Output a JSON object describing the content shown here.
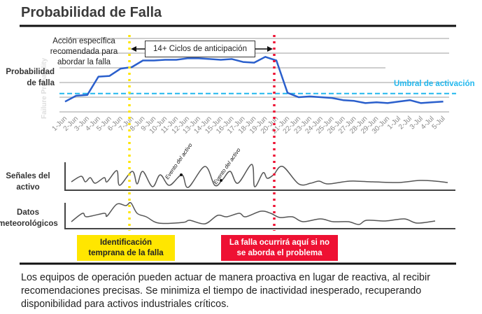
{
  "title": "Probabilidad de Falla",
  "left_labels": {
    "probability_line1": "Probabilidad",
    "probability_line2": "de falla",
    "signals_line1": "Señales del",
    "signals_line2": "activo",
    "weather_line1": "Datos",
    "weather_line2": "meteorológicos"
  },
  "faint_axis_label": "Failure Probability",
  "action_note": {
    "line1": "Acción específica",
    "line2": "recomendada para",
    "line3": "abordar la falla"
  },
  "cycles_label": "14+ Ciclos de anticipación",
  "threshold_label": "Umbral de activación",
  "event_label": "Evento del activo",
  "boxes": {
    "early_line1": "Identificación",
    "early_line2": "temprana de la falla",
    "failure_line1": "La falla ocurrirá aquí si no",
    "failure_line2": "se aborda el problema"
  },
  "paragraph": "Los equipos de operación pueden actuar de manera proactiva en lugar de reactiva, al recibir recomendaciones precisas. Se minimiza el tiempo de inactividad inesperado, recuperando disponibilidad para activos industriales críticos.",
  "colors": {
    "line": "#2a5fcc",
    "threshold": "#22b8ee",
    "early": "#ffe600",
    "failure": "#ee1133"
  },
  "chart_data": {
    "type": "line",
    "title": "Probabilidad de Falla",
    "ylabel": "Probabilidad de falla",
    "ylim": [
      0,
      100
    ],
    "threshold": 25,
    "categories": [
      "1-Jun",
      "2-Jun",
      "3-Jun",
      "4-Jun",
      "5-Jun",
      "6-Jun",
      "7-Jun",
      "8-Jun",
      "9-Jun",
      "10-Jun",
      "11-Jun",
      "12-Jun",
      "13-Jun",
      "14-Jun",
      "15-Jun",
      "16-Jun",
      "17-Jun",
      "18-Jun",
      "19-Jun",
      "20-Jun",
      "21-Jun",
      "22-Jun",
      "23-Jun",
      "24-Jun",
      "25-Jun",
      "26-Jun",
      "27-Jun",
      "28-Jun",
      "29-Jun",
      "30-Jun",
      "1-Jul",
      "2-Jul",
      "3-Jul",
      "4-Jul",
      "5-Jul"
    ],
    "values": [
      14,
      22,
      23,
      48,
      49,
      59,
      61,
      70,
      70,
      71,
      71,
      73,
      73,
      72,
      71,
      72,
      68,
      67,
      75,
      70,
      26,
      20,
      21,
      20,
      19,
      16,
      15,
      12,
      13,
      12,
      14,
      16,
      12,
      13,
      14
    ],
    "early_marker": "8-Jun",
    "failure_marker": "20-Jun"
  }
}
